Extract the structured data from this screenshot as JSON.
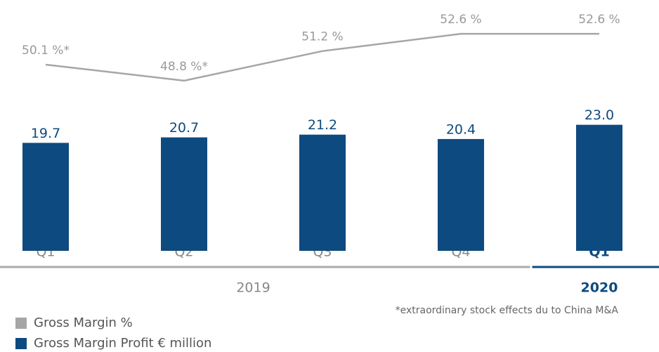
{
  "chart_data": {
    "type": "bar-line",
    "categories": [
      "Q1",
      "Q2",
      "Q3",
      "Q4",
      "Q1"
    ],
    "groups": [
      {
        "name": "2019",
        "count": 4
      },
      {
        "name": "2020",
        "count": 1
      }
    ],
    "series": [
      {
        "name": "Gross Margin Profit € million",
        "type": "bar",
        "color": "#0d4a7f",
        "axis": "y",
        "values": [
          19.7,
          20.7,
          21.2,
          20.4,
          23.0
        ],
        "value_labels": [
          "19.7",
          "20.7",
          "21.2",
          "20.4",
          "23.0"
        ]
      },
      {
        "name": "Gross Margin %",
        "type": "line",
        "color": "#a6a6a6",
        "axis": "y2",
        "values": [
          50.1,
          48.8,
          51.2,
          52.6,
          52.6
        ],
        "value_labels": [
          "50.1 %*",
          "48.8 %*",
          "51.2 %",
          "52.6 %",
          "52.6 %"
        ]
      }
    ],
    "legend_order": [
      1,
      0
    ],
    "ylim": [
      0,
      45
    ],
    "y2lim": [
      35,
      55
    ],
    "footnote": "*extraordinary stock effects du to China M&A"
  }
}
